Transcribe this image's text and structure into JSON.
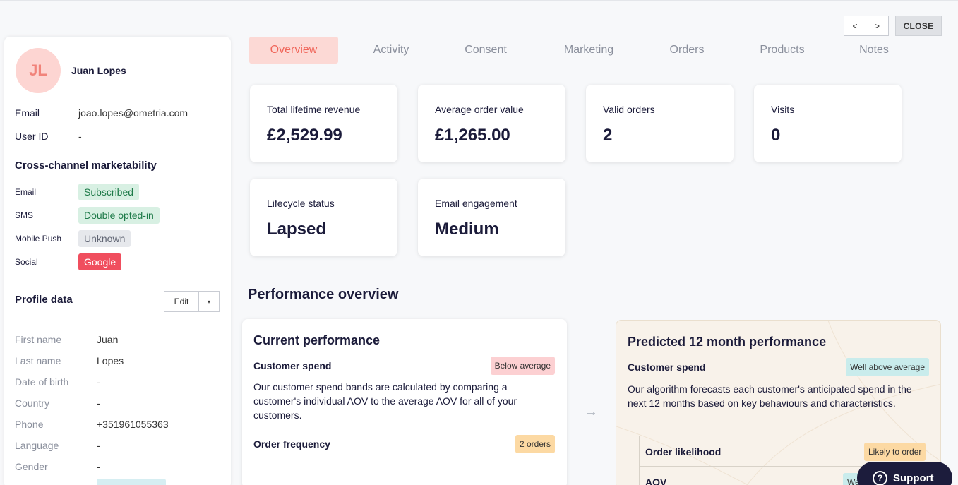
{
  "nav": {
    "prev_label": "<",
    "next_label": ">",
    "close_label": "CLOSE"
  },
  "profile": {
    "initials": "JL",
    "name": "Juan Lopes",
    "email_label": "Email",
    "email": "joao.lopes@ometria.com",
    "user_id_label": "User ID",
    "user_id": "-"
  },
  "marketability": {
    "title": "Cross-channel marketability",
    "channels": [
      {
        "label": "Email",
        "status": "Subscribed"
      },
      {
        "label": "SMS",
        "status": "Double opted-in"
      },
      {
        "label": "Mobile Push",
        "status": "Unknown"
      },
      {
        "label": "Social",
        "status": "Google"
      }
    ]
  },
  "profile_data": {
    "title": "Profile data",
    "edit_label": "Edit",
    "caret": "▾",
    "fields": [
      {
        "label": "First name",
        "value": "Juan"
      },
      {
        "label": "Last name",
        "value": "Lopes"
      },
      {
        "label": "Date of birth",
        "value": "-"
      },
      {
        "label": "Country",
        "value": "-"
      },
      {
        "label": "Phone",
        "value": "+351961055363"
      },
      {
        "label": "Language",
        "value": "-"
      },
      {
        "label": "Gender",
        "value": "-"
      }
    ]
  },
  "tabs": [
    "Overview",
    "Activity",
    "Consent",
    "Marketing",
    "Orders",
    "Products",
    "Notes"
  ],
  "stats": [
    {
      "label": "Total lifetime revenue",
      "value": "£2,529.99"
    },
    {
      "label": "Average order value",
      "value": "£1,265.00"
    },
    {
      "label": "Valid orders",
      "value": "2"
    },
    {
      "label": "Visits",
      "value": "0"
    },
    {
      "label": "Lifecycle status",
      "value": "Lapsed"
    },
    {
      "label": "Email engagement",
      "value": "Medium"
    }
  ],
  "performance": {
    "title": "Performance overview",
    "current": {
      "title": "Current performance",
      "spend_title": "Customer spend",
      "spend_badge": "Below average",
      "spend_desc": "Our customer spend bands are calculated by comparing a customer's individual AOV to the average AOV for all of your customers.",
      "freq_title": "Order frequency",
      "freq_badge": "2 orders"
    },
    "arrow": "→",
    "predicted": {
      "title": "Predicted 12 month performance",
      "spend_title": "Customer spend",
      "spend_badge": "Well above average",
      "spend_desc": "Our algorithm forecasts each customer's anticipated spend in the next 12 months based on key behaviours and characteristics.",
      "likelihood_title": "Order likelihood",
      "likelihood_badge": "Likely to order",
      "aov_title": "AOV",
      "aov_badge": "We"
    }
  },
  "support": {
    "icon": "?",
    "label": "Support"
  }
}
